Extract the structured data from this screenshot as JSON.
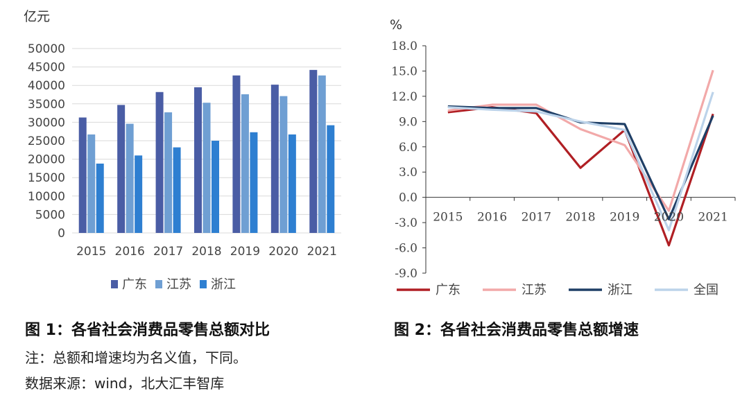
{
  "chart_data": [
    {
      "type": "bar",
      "title": "图 1：各省社会消费品零售总额对比",
      "ylabel": "亿元",
      "xlabel": "",
      "ylim": [
        0,
        50000
      ],
      "yticks": [
        0,
        5000,
        10000,
        15000,
        20000,
        25000,
        30000,
        35000,
        40000,
        45000,
        50000
      ],
      "grid": true,
      "legend": "bottom",
      "categories": [
        "2015",
        "2016",
        "2017",
        "2018",
        "2019",
        "2020",
        "2021"
      ],
      "series": [
        {
          "name": "广东",
          "color": "#4A5DA5",
          "values": [
            31300,
            34700,
            38200,
            39500,
            42700,
            40200,
            44200
          ]
        },
        {
          "name": "江苏",
          "color": "#6F9FD3",
          "values": [
            26700,
            29600,
            32700,
            35300,
            37600,
            37100,
            42700
          ]
        },
        {
          "name": "浙江",
          "color": "#2E7FD1",
          "values": [
            18800,
            21000,
            23200,
            25000,
            27300,
            26700,
            29200
          ]
        }
      ]
    },
    {
      "type": "line",
      "title": "图 2：各省社会消费品零售总额增速",
      "ylabel": "%",
      "xlabel": "",
      "ylim": [
        -9,
        18
      ],
      "yticks": [
        "-9.0",
        "-6.0",
        "-3.0",
        "0.0",
        "3.0",
        "6.0",
        "9.0",
        "12.0",
        "15.0",
        "18.0"
      ],
      "grid": false,
      "legend": "bottom",
      "categories": [
        "2015",
        "2016",
        "2017",
        "2018",
        "2019",
        "2020",
        "2021"
      ],
      "series": [
        {
          "name": "广东",
          "color": "#B01F24",
          "values": [
            10.1,
            10.7,
            10.0,
            3.5,
            8.0,
            -5.7,
            9.9
          ]
        },
        {
          "name": "江苏",
          "color": "#F2A9A9",
          "values": [
            10.3,
            11.0,
            11.0,
            8.1,
            6.2,
            -1.6,
            15.1
          ]
        },
        {
          "name": "浙江",
          "color": "#1F3F66",
          "values": [
            10.8,
            10.6,
            10.6,
            8.9,
            8.7,
            -2.6,
            9.7
          ]
        },
        {
          "name": "全国",
          "color": "#BCD3EA",
          "values": [
            10.7,
            10.4,
            10.2,
            9.0,
            8.0,
            -3.9,
            12.5
          ]
        }
      ]
    }
  ],
  "notes": {
    "line1": "注：总额和增速均为名义值，下同。",
    "line2": "数据来源：wind，北大汇丰智库"
  }
}
